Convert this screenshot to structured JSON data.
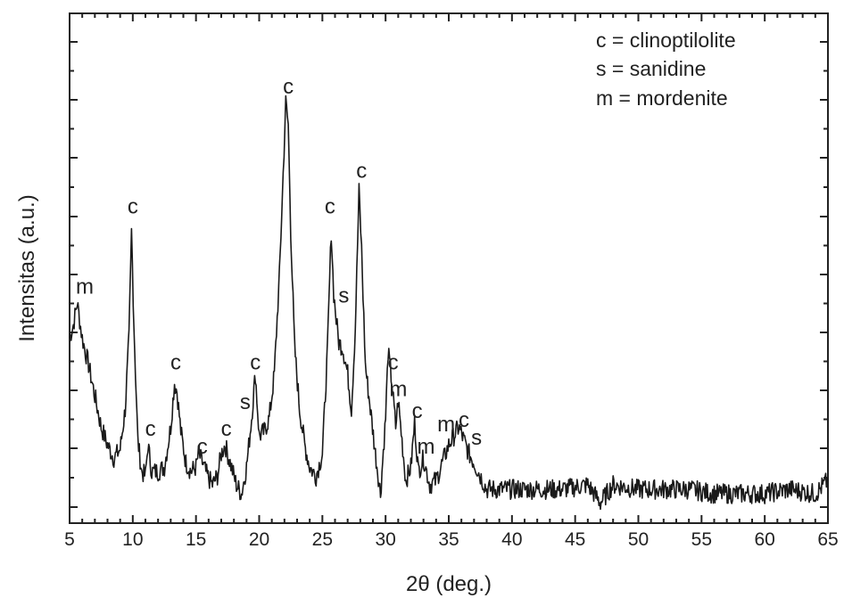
{
  "chart_data": {
    "type": "line",
    "title": "",
    "xlabel": "2θ (deg.)",
    "ylabel": "Intensitas (a.u.)",
    "xlim": [
      5,
      65
    ],
    "ylim": [
      0,
      100
    ],
    "x_ticks": [
      5,
      10,
      15,
      20,
      25,
      30,
      35,
      40,
      45,
      50,
      55,
      60,
      65
    ],
    "y_tick_labels_shown": false,
    "grid": false,
    "legend_position": "top-right",
    "legend": [
      "c = clinoptilolite",
      "s = sanidine",
      "m = mordenite"
    ],
    "series": [
      {
        "x": [
          5.0,
          5.3,
          5.6,
          5.8,
          6.0,
          6.5,
          7.0,
          7.5,
          8.0,
          8.5,
          9.0,
          9.4,
          9.7,
          9.9,
          10.1,
          10.4,
          10.7,
          11.0,
          11.2,
          11.5,
          12.0,
          12.5,
          13.0,
          13.3,
          13.5,
          13.8,
          14.2,
          14.6,
          15.0,
          15.2,
          15.5,
          15.9,
          16.3,
          16.7,
          17.0,
          17.3,
          17.7,
          18.2,
          18.6,
          19.0,
          19.4,
          19.7,
          20.0,
          20.4,
          20.8,
          21.2,
          21.6,
          21.9,
          22.1,
          22.3,
          22.5,
          22.8,
          23.2,
          23.6,
          24.0,
          24.5,
          25.0,
          25.4,
          25.7,
          25.9,
          26.1,
          26.3,
          26.6,
          27.0,
          27.3,
          27.6,
          27.9,
          28.1,
          28.4,
          28.8,
          29.2,
          29.6,
          30.0,
          30.2,
          30.5,
          30.8,
          31.0,
          31.3,
          31.6,
          32.0,
          32.3,
          32.6,
          33.0,
          33.5,
          34.0,
          34.5,
          35.0,
          35.4,
          35.8,
          36.2,
          36.6,
          37.0,
          37.5,
          38.0,
          39.0,
          40.0,
          42.0,
          44.0,
          46.0,
          47.0,
          48.0,
          50.0,
          52.0,
          54.0,
          56.0,
          58.0,
          60.0,
          62.0,
          64.0,
          65.0
        ],
        "y": [
          38,
          41,
          46,
          42,
          38,
          32,
          25,
          18,
          14,
          11,
          13,
          22,
          38,
          62,
          40,
          15,
          8,
          7,
          14,
          8,
          8,
          9,
          18,
          28,
          26,
          17,
          10,
          8,
          9,
          12,
          10,
          7,
          5,
          7,
          12,
          14,
          10,
          5,
          3,
          9,
          20,
          30,
          16,
          17,
          20,
          30,
          52,
          75,
          91,
          86,
          62,
          36,
          22,
          14,
          9,
          7,
          12,
          35,
          62,
          48,
          42,
          37,
          36,
          30,
          22,
          40,
          71,
          58,
          32,
          22,
          12,
          3,
          20,
          35,
          28,
          18,
          24,
          15,
          6,
          9,
          19,
          8,
          11,
          5,
          6,
          10,
          14,
          16,
          18,
          15,
          12,
          10,
          7,
          4,
          4,
          4,
          4,
          4,
          5,
          1,
          5,
          4,
          4,
          4,
          3,
          3,
          3,
          4,
          3,
          6
        ]
      }
    ],
    "annotations": [
      {
        "text": "m",
        "x": 6.2,
        "y": 48
      },
      {
        "text": "c",
        "x": 10.0,
        "y": 66
      },
      {
        "text": "c",
        "x": 11.4,
        "y": 16
      },
      {
        "text": "c",
        "x": 13.4,
        "y": 31
      },
      {
        "text": "c",
        "x": 15.5,
        "y": 12
      },
      {
        "text": "c",
        "x": 17.4,
        "y": 16
      },
      {
        "text": "s",
        "x": 18.9,
        "y": 22
      },
      {
        "text": "c",
        "x": 19.7,
        "y": 31
      },
      {
        "text": "c",
        "x": 22.3,
        "y": 93
      },
      {
        "text": "c",
        "x": 25.6,
        "y": 66
      },
      {
        "text": "s",
        "x": 26.7,
        "y": 46
      },
      {
        "text": "c",
        "x": 28.1,
        "y": 74
      },
      {
        "text": "c",
        "x": 30.6,
        "y": 31
      },
      {
        "text": "m",
        "x": 31.0,
        "y": 25
      },
      {
        "text": "c",
        "x": 32.5,
        "y": 20
      },
      {
        "text": "m",
        "x": 33.2,
        "y": 12
      },
      {
        "text": "m",
        "x": 34.8,
        "y": 17
      },
      {
        "text": "c",
        "x": 36.2,
        "y": 18
      },
      {
        "text": "s",
        "x": 37.2,
        "y": 14
      }
    ]
  }
}
